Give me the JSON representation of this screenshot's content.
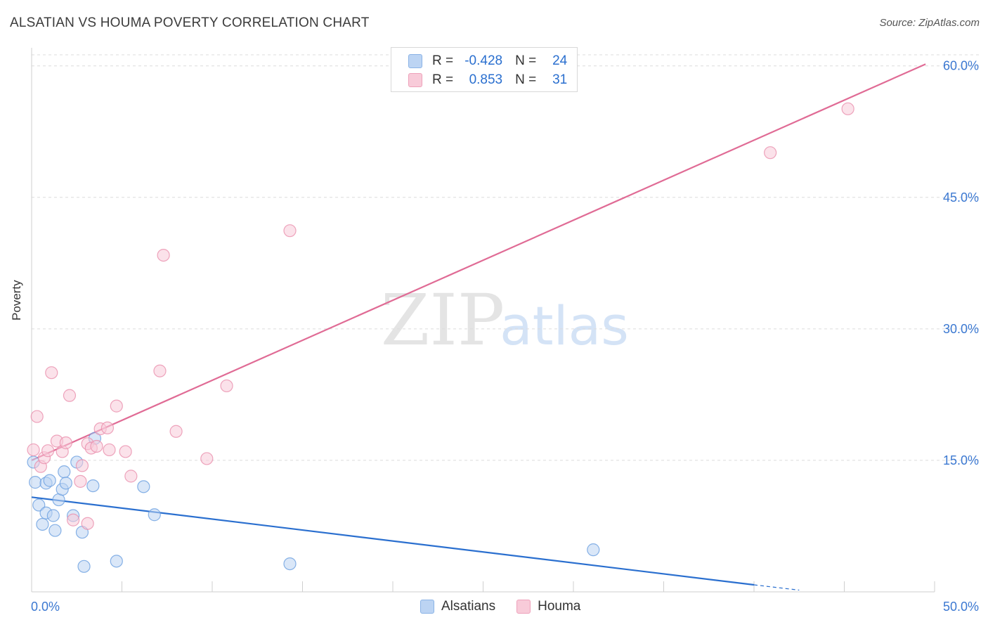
{
  "title": "ALSATIAN VS HOUMA POVERTY CORRELATION CHART",
  "source": "Source: ZipAtlas.com",
  "watermark": {
    "zip": "ZIP",
    "atlas": "atlas"
  },
  "legend": {
    "rows": [
      {
        "r_label": "R =",
        "r_value": "-0.428",
        "n_label": "N =",
        "n_value": "24",
        "color": "#bcd4f3"
      },
      {
        "r_label": "R =",
        "r_value": "0.853",
        "n_label": "N =",
        "n_value": "31",
        "color": "#f8cbd9"
      }
    ]
  },
  "bottom_legend": [
    {
      "label": "Alsatians",
      "color": "#bcd4f3"
    },
    {
      "label": "Houma",
      "color": "#f8cbd9"
    }
  ],
  "chart_data": {
    "type": "scatter",
    "title": "ALSATIAN VS HOUMA POVERTY CORRELATION CHART",
    "xlabel": "",
    "ylabel": "Poverty",
    "xlim": [
      0,
      50
    ],
    "ylim": [
      0,
      61.5
    ],
    "x_tick_labels": [
      "0.0%",
      "50.0%"
    ],
    "y_ticks": [
      15,
      30,
      45,
      60
    ],
    "y_tick_labels": [
      "15.0%",
      "30.0%",
      "45.0%",
      "60.0%"
    ],
    "grid": true,
    "series": [
      {
        "name": "Alsatians",
        "color": "#6a9fe0",
        "fill": "#bcd4f3",
        "line_color": "#2a6fcf",
        "trend": {
          "x0": 0,
          "y0": 10.8,
          "x1": 40,
          "y1": 0.8,
          "dash_to_x": 42.5,
          "dash_to_y": 0.2
        },
        "points": [
          [
            0.1,
            14.8
          ],
          [
            0.2,
            12.5
          ],
          [
            0.4,
            9.9
          ],
          [
            0.6,
            7.7
          ],
          [
            0.8,
            9.0
          ],
          [
            0.8,
            12.4
          ],
          [
            1.0,
            12.7
          ],
          [
            1.2,
            8.7
          ],
          [
            1.3,
            7.0
          ],
          [
            1.5,
            10.5
          ],
          [
            1.7,
            11.7
          ],
          [
            1.8,
            13.7
          ],
          [
            1.9,
            12.4
          ],
          [
            2.3,
            8.7
          ],
          [
            2.5,
            14.8
          ],
          [
            2.8,
            6.8
          ],
          [
            2.9,
            2.9
          ],
          [
            3.4,
            12.1
          ],
          [
            3.5,
            17.5
          ],
          [
            4.7,
            3.5
          ],
          [
            6.2,
            12.0
          ],
          [
            6.8,
            8.8
          ],
          [
            14.3,
            3.2
          ],
          [
            31.1,
            4.8
          ]
        ]
      },
      {
        "name": "Houma",
        "color": "#ea8fad",
        "fill": "#f8cbd9",
        "line_color": "#e06b95",
        "trend": {
          "x0": 0,
          "y0": 15.0,
          "x1": 49.5,
          "y1": 60.2
        },
        "points": [
          [
            0.1,
            16.2
          ],
          [
            0.3,
            20.0
          ],
          [
            0.5,
            14.3
          ],
          [
            0.7,
            15.3
          ],
          [
            0.9,
            16.1
          ],
          [
            1.1,
            25.0
          ],
          [
            1.4,
            17.2
          ],
          [
            1.7,
            16.0
          ],
          [
            1.9,
            17.0
          ],
          [
            2.1,
            22.4
          ],
          [
            2.3,
            8.2
          ],
          [
            2.7,
            12.6
          ],
          [
            2.8,
            14.4
          ],
          [
            3.1,
            16.9
          ],
          [
            3.1,
            7.8
          ],
          [
            3.3,
            16.4
          ],
          [
            3.6,
            16.6
          ],
          [
            3.8,
            18.6
          ],
          [
            4.2,
            18.7
          ],
          [
            4.3,
            16.2
          ],
          [
            4.7,
            21.2
          ],
          [
            5.2,
            16.0
          ],
          [
            5.5,
            13.2
          ],
          [
            7.1,
            25.2
          ],
          [
            7.3,
            38.4
          ],
          [
            8.0,
            18.3
          ],
          [
            9.7,
            15.2
          ],
          [
            10.8,
            23.5
          ],
          [
            14.3,
            41.2
          ],
          [
            40.9,
            50.1
          ],
          [
            45.2,
            55.1
          ]
        ]
      }
    ]
  }
}
